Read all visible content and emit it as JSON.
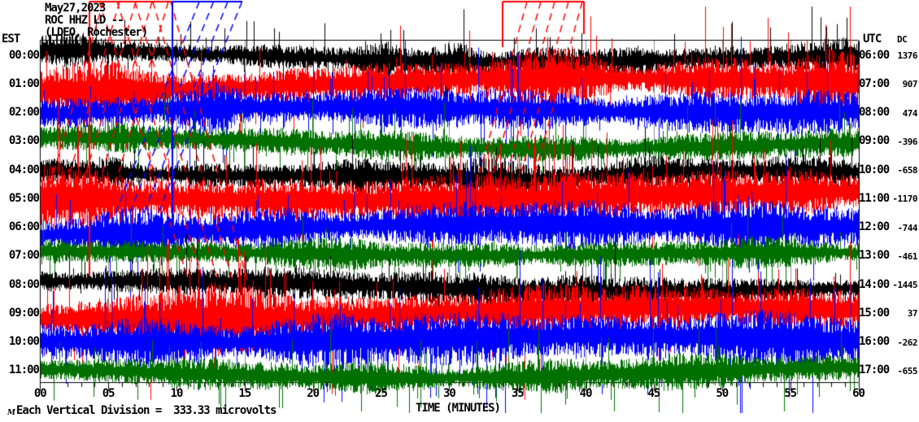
{
  "header": {
    "date": "May27,2023",
    "station": "ROC HHZ LD --",
    "network": "(LDEO, Rochester)",
    "left_tz": "EST",
    "right_tz": "UTC",
    "dc_label": "DC"
  },
  "footer": {
    "time_axis_label": "TIME (MINUTES)",
    "scale_note": "Each Vertical Division =  333.33 microvolts",
    "watermark": "M"
  },
  "chart_data": {
    "type": "seismogram-helicorder",
    "title": "ROC HHZ LD -- (LDEO, Rochester) May27,2023",
    "xlabel": "TIME (MINUTES)",
    "x_range_minutes": [
      0,
      60
    ],
    "x_ticks": [
      "00",
      "05",
      "10",
      "15",
      "20",
      "25",
      "30",
      "35",
      "40",
      "45",
      "50",
      "55",
      "60"
    ],
    "minor_tick_minutes": 1,
    "major_tick_minutes": 5,
    "grid": "vertical lines every 5 minutes",
    "rows_are_hours": true,
    "rows": [
      {
        "est": "00:00",
        "utc": "06:00",
        "dc": "1376",
        "color": "black"
      },
      {
        "est": "01:00",
        "utc": "07:00",
        "dc": "907",
        "color": "red"
      },
      {
        "est": "02:00",
        "utc": "08:00",
        "dc": "474",
        "color": "blue"
      },
      {
        "est": "03:00",
        "utc": "09:00",
        "dc": "-396",
        "color": "green"
      },
      {
        "est": "04:00",
        "utc": "10:00",
        "dc": "-658",
        "color": "black"
      },
      {
        "est": "05:00",
        "utc": "11:00",
        "dc": "-1170",
        "color": "red"
      },
      {
        "est": "06:00",
        "utc": "12:00",
        "dc": "-744",
        "color": "blue"
      },
      {
        "est": "07:00",
        "utc": "13:00",
        "dc": "-461",
        "color": "green"
      },
      {
        "est": "08:00",
        "utc": "14:00",
        "dc": "-1445",
        "color": "black"
      },
      {
        "est": "09:00",
        "utc": "15:00",
        "dc": "37",
        "color": "red"
      },
      {
        "est": "10:00",
        "utc": "16:00",
        "dc": "-262",
        "color": "blue"
      },
      {
        "est": "11:00",
        "utc": "17:00",
        "dc": "-655",
        "color": "green"
      }
    ],
    "colors": {
      "black": "#000000",
      "red": "#ff0000",
      "blue": "#0000ff",
      "green": "#007000",
      "grid": "#8f8f8f",
      "axis": "#000000"
    }
  }
}
